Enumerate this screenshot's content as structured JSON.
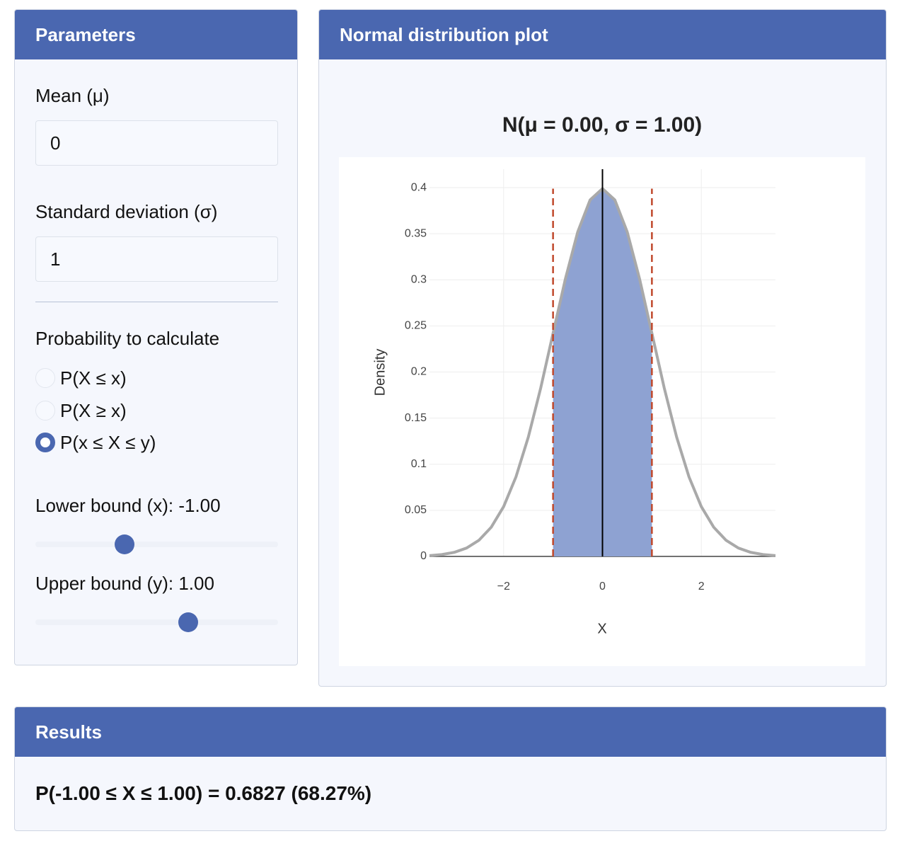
{
  "parameters": {
    "title": "Parameters",
    "mean": {
      "label": "Mean (μ)",
      "value": "0"
    },
    "sd": {
      "label": "Standard deviation (σ)",
      "value": "1"
    },
    "probability": {
      "label": "Probability to calculate",
      "options": [
        "P(X ≤ x)",
        "P(X ≥ x)",
        "P(x ≤ X ≤ y)"
      ],
      "selected": 2
    },
    "lower": {
      "label": "Lower bound (x): -1.00"
    },
    "upper": {
      "label": "Upper bound (y): 1.00"
    }
  },
  "plot_panel": {
    "title": "Normal distribution plot"
  },
  "chart_data": {
    "type": "line",
    "title": "N(μ = 0.00, σ = 1.00)",
    "xlabel": "X",
    "ylabel": "Density",
    "x": [
      -3.5,
      -3.25,
      -3,
      -2.75,
      -2.5,
      -2.25,
      -2,
      -1.75,
      -1.5,
      -1.25,
      -1,
      -0.75,
      -0.5,
      -0.25,
      0,
      0.25,
      0.5,
      0.75,
      1,
      1.25,
      1.5,
      1.75,
      2,
      2.25,
      2.5,
      2.75,
      3,
      3.25,
      3.5
    ],
    "series": [
      {
        "color": "#a9a9a9",
        "values": [
          0.0009,
          0.002,
          0.0044,
          0.0091,
          0.0175,
          0.0317,
          0.054,
          0.0863,
          0.1295,
          0.1826,
          0.242,
          0.3011,
          0.3521,
          0.3867,
          0.3989,
          0.3867,
          0.3521,
          0.3011,
          0.242,
          0.1826,
          0.1295,
          0.0863,
          0.054,
          0.0317,
          0.0175,
          0.0091,
          0.0044,
          0.002,
          0.0009
        ]
      }
    ],
    "shade_color": "#8ea2d2",
    "vlines": [
      {
        "value": -1,
        "color": "#c0492c"
      },
      {
        "value": 1,
        "color": "#c0492c"
      }
    ],
    "mean_line": {
      "value": 0,
      "color": "#000000"
    },
    "xlim": [
      -3.5,
      3.5
    ],
    "xticks": [
      {
        "value": -2,
        "label": "−2"
      },
      0,
      2
    ],
    "ylim": [
      0,
      0.42
    ],
    "yticks": [
      0,
      0.05,
      0.1,
      0.15,
      0.2,
      0.25,
      0.3,
      0.35,
      0.4
    ],
    "grid": true
  },
  "results": {
    "title": "Results",
    "text": "P(-1.00 ≤ X ≤ 1.00) = 0.6827 (68.27%)"
  }
}
